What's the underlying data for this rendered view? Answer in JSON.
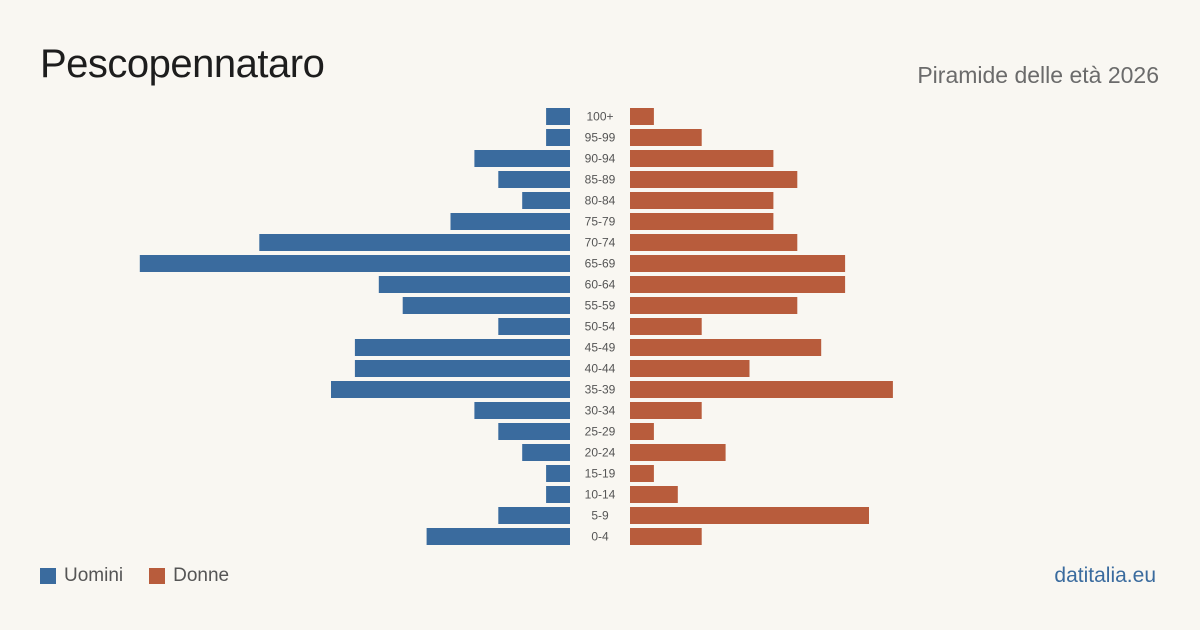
{
  "header": {
    "title": "Pescopennataro",
    "subtitle": "Piramide delle età 2026"
  },
  "legend": {
    "men_label": "Uomini",
    "women_label": "Donne"
  },
  "footer": {
    "source": "datitalia.eu"
  },
  "colors": {
    "men": "#3a6b9e",
    "women": "#b85c3c",
    "background": "#f9f7f2"
  },
  "chart_data": {
    "type": "bar",
    "orientation": "horizontal-pyramid",
    "categories": [
      "100+",
      "95-99",
      "90-94",
      "85-89",
      "80-84",
      "75-79",
      "70-74",
      "65-69",
      "60-64",
      "55-59",
      "50-54",
      "45-49",
      "40-44",
      "35-39",
      "30-34",
      "25-29",
      "20-24",
      "15-19",
      "10-14",
      "5-9",
      "0-4"
    ],
    "series": [
      {
        "name": "Uomini",
        "values": [
          1,
          1,
          4,
          3,
          2,
          5,
          13,
          18,
          8,
          7,
          3,
          9,
          9,
          10,
          4,
          3,
          2,
          1,
          1,
          3,
          6
        ]
      },
      {
        "name": "Donne",
        "values": [
          1,
          3,
          6,
          7,
          6,
          6,
          7,
          9,
          9,
          7,
          3,
          8,
          5,
          11,
          3,
          1,
          4,
          1,
          2,
          10,
          3
        ]
      }
    ],
    "grid": false,
    "legend_position": "bottom-left"
  }
}
